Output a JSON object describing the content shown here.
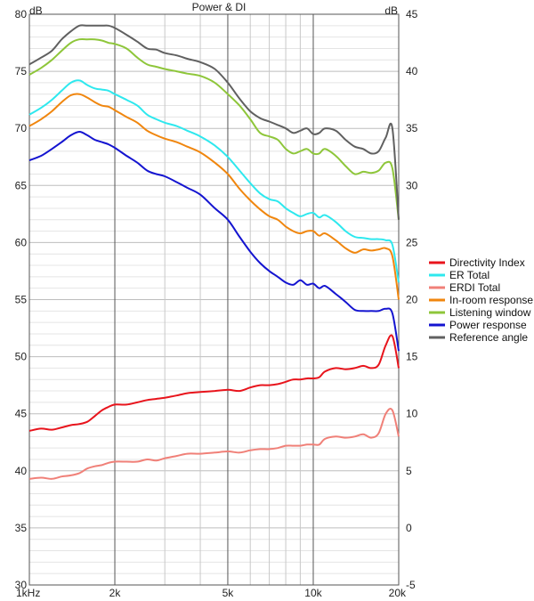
{
  "chart_data": {
    "type": "line",
    "title": "Power & DI",
    "left_axis_unit": "dB",
    "right_axis_unit": "dB",
    "x_scale": "log",
    "xlim": [
      1000,
      20000
    ],
    "ylim_left": [
      30,
      80
    ],
    "ylim_right": [
      -5,
      45
    ],
    "grid": true,
    "legend_position": "right",
    "x_ticks": [
      {
        "value": 1000,
        "label": "1kHz"
      },
      {
        "value": 2000,
        "label": "2k"
      },
      {
        "value": 5000,
        "label": "5k"
      },
      {
        "value": 10000,
        "label": "10k"
      },
      {
        "value": 20000,
        "label": "20k"
      }
    ],
    "y_ticks_left": [
      "30",
      "35",
      "40",
      "45",
      "50",
      "55",
      "60",
      "65",
      "70",
      "75",
      "80"
    ],
    "y_ticks_right": [
      "-5",
      "0",
      "5",
      "10",
      "15",
      "20",
      "25",
      "30",
      "35",
      "40",
      "45"
    ],
    "series": [
      {
        "name": "Directivity Index",
        "color": "#e8141c",
        "axis": "right",
        "x": [
          1000,
          1100,
          1200,
          1300,
          1400,
          1500,
          1600,
          1700,
          1800,
          1900,
          2000,
          2200,
          2400,
          2600,
          2800,
          3000,
          3300,
          3600,
          4000,
          4500,
          5000,
          5500,
          6000,
          6500,
          7000,
          7500,
          8000,
          8500,
          9000,
          9500,
          10000,
          10500,
          11000,
          12000,
          13000,
          14000,
          15000,
          16000,
          17000,
          18000,
          19000,
          20000
        ],
        "values": [
          8.5,
          8.7,
          8.6,
          8.8,
          9.0,
          9.1,
          9.3,
          9.8,
          10.3,
          10.6,
          10.8,
          10.8,
          11.0,
          11.2,
          11.3,
          11.4,
          11.6,
          11.8,
          11.9,
          12.0,
          12.1,
          12.0,
          12.3,
          12.5,
          12.5,
          12.6,
          12.8,
          13.0,
          13.0,
          13.1,
          13.1,
          13.2,
          13.7,
          14.0,
          13.9,
          14.0,
          14.2,
          14.0,
          14.3,
          16.0,
          16.8,
          14.0
        ]
      },
      {
        "name": "ER Total",
        "color": "#2ee8ee",
        "axis": "left",
        "x": [
          1000,
          1100,
          1200,
          1300,
          1400,
          1500,
          1600,
          1700,
          1800,
          1900,
          2000,
          2200,
          2400,
          2600,
          2800,
          3000,
          3300,
          3600,
          4000,
          4500,
          5000,
          5500,
          6000,
          6500,
          7000,
          7500,
          8000,
          8500,
          9000,
          9500,
          10000,
          10500,
          11000,
          12000,
          13000,
          14000,
          15000,
          16000,
          17000,
          18000,
          19000,
          20000
        ],
        "values": [
          71.2,
          71.8,
          72.5,
          73.3,
          74.0,
          74.2,
          73.8,
          73.5,
          73.4,
          73.3,
          73.0,
          72.5,
          72.0,
          71.2,
          70.8,
          70.5,
          70.2,
          69.8,
          69.3,
          68.5,
          67.5,
          66.3,
          65.2,
          64.3,
          63.8,
          63.6,
          63.0,
          62.6,
          62.3,
          62.5,
          62.6,
          62.2,
          62.4,
          61.8,
          61.0,
          60.5,
          60.4,
          60.3,
          60.3,
          60.2,
          59.8,
          56.5
        ]
      },
      {
        "name": "ERDI Total",
        "color": "#f08078",
        "axis": "right",
        "x": [
          1000,
          1100,
          1200,
          1300,
          1400,
          1500,
          1600,
          1700,
          1800,
          1900,
          2000,
          2200,
          2400,
          2600,
          2800,
          3000,
          3300,
          3600,
          4000,
          4500,
          5000,
          5500,
          6000,
          6500,
          7000,
          7500,
          8000,
          8500,
          9000,
          9500,
          10000,
          10500,
          11000,
          12000,
          13000,
          14000,
          15000,
          16000,
          17000,
          18000,
          19000,
          20000
        ],
        "values": [
          4.3,
          4.4,
          4.3,
          4.5,
          4.6,
          4.8,
          5.2,
          5.4,
          5.5,
          5.7,
          5.8,
          5.8,
          5.8,
          6.0,
          5.9,
          6.1,
          6.3,
          6.5,
          6.5,
          6.6,
          6.7,
          6.6,
          6.8,
          6.9,
          6.9,
          7.0,
          7.2,
          7.2,
          7.2,
          7.3,
          7.3,
          7.3,
          7.8,
          8.0,
          7.9,
          8.0,
          8.2,
          7.9,
          8.3,
          10.0,
          10.3,
          8.0
        ]
      },
      {
        "name": "In-room response",
        "color": "#f0860e",
        "axis": "left",
        "x": [
          1000,
          1100,
          1200,
          1300,
          1400,
          1500,
          1600,
          1700,
          1800,
          1900,
          2000,
          2200,
          2400,
          2600,
          2800,
          3000,
          3300,
          3600,
          4000,
          4500,
          5000,
          5500,
          6000,
          6500,
          7000,
          7500,
          8000,
          8500,
          9000,
          9500,
          10000,
          10500,
          11000,
          12000,
          13000,
          14000,
          15000,
          16000,
          17000,
          18000,
          19000,
          20000
        ],
        "values": [
          70.2,
          70.8,
          71.5,
          72.3,
          72.9,
          73.0,
          72.7,
          72.3,
          72.0,
          71.9,
          71.6,
          71.0,
          70.5,
          69.8,
          69.4,
          69.1,
          68.8,
          68.4,
          67.9,
          67.0,
          66.0,
          64.7,
          63.7,
          62.9,
          62.3,
          62.0,
          61.4,
          61.0,
          60.8,
          61.0,
          61.0,
          60.6,
          60.8,
          60.2,
          59.5,
          59.1,
          59.4,
          59.3,
          59.4,
          59.5,
          58.8,
          55.0
        ]
      },
      {
        "name": "Listening window",
        "color": "#8ec63a",
        "axis": "left",
        "x": [
          1000,
          1100,
          1200,
          1300,
          1400,
          1500,
          1600,
          1700,
          1800,
          1900,
          2000,
          2200,
          2400,
          2600,
          2800,
          3000,
          3300,
          3600,
          4000,
          4500,
          5000,
          5500,
          6000,
          6500,
          7000,
          7500,
          8000,
          8500,
          9000,
          9500,
          10000,
          10500,
          11000,
          12000,
          13000,
          14000,
          15000,
          16000,
          17000,
          18000,
          19000,
          20000
        ],
        "values": [
          74.7,
          75.3,
          76.0,
          76.8,
          77.5,
          77.8,
          77.8,
          77.8,
          77.7,
          77.5,
          77.4,
          77.0,
          76.2,
          75.6,
          75.4,
          75.2,
          75.0,
          74.8,
          74.6,
          74.0,
          73.0,
          72.0,
          70.8,
          69.6,
          69.3,
          69.0,
          68.2,
          67.8,
          68.0,
          68.2,
          67.8,
          67.8,
          68.2,
          67.6,
          66.7,
          66.0,
          66.2,
          66.1,
          66.3,
          67.0,
          66.5,
          62.0
        ]
      },
      {
        "name": "Power response",
        "color": "#1414d0",
        "axis": "left",
        "x": [
          1000,
          1100,
          1200,
          1300,
          1400,
          1500,
          1600,
          1700,
          1800,
          1900,
          2000,
          2200,
          2400,
          2600,
          2800,
          3000,
          3300,
          3600,
          4000,
          4500,
          5000,
          5500,
          6000,
          6500,
          7000,
          7500,
          8000,
          8500,
          9000,
          9500,
          10000,
          10500,
          11000,
          12000,
          13000,
          14000,
          15000,
          16000,
          17000,
          18000,
          19000,
          20000
        ],
        "values": [
          67.2,
          67.6,
          68.2,
          68.8,
          69.4,
          69.7,
          69.4,
          69.0,
          68.8,
          68.6,
          68.3,
          67.6,
          67.0,
          66.3,
          66.0,
          65.8,
          65.3,
          64.8,
          64.2,
          63.0,
          62.0,
          60.5,
          59.2,
          58.2,
          57.5,
          57.0,
          56.5,
          56.3,
          56.7,
          56.3,
          56.4,
          56.0,
          56.2,
          55.5,
          54.8,
          54.1,
          54.0,
          54.0,
          54.0,
          54.2,
          53.8,
          50.5
        ]
      },
      {
        "name": "Reference angle",
        "color": "#606060",
        "axis": "left",
        "x": [
          1000,
          1100,
          1200,
          1300,
          1400,
          1500,
          1600,
          1700,
          1800,
          1900,
          2000,
          2200,
          2400,
          2600,
          2800,
          3000,
          3300,
          3600,
          4000,
          4500,
          5000,
          5500,
          6000,
          6500,
          7000,
          7500,
          8000,
          8500,
          9000,
          9500,
          10000,
          10500,
          11000,
          12000,
          13000,
          14000,
          15000,
          16000,
          17000,
          18000,
          19000,
          20000
        ],
        "values": [
          75.6,
          76.2,
          76.8,
          77.8,
          78.5,
          79.0,
          79.0,
          79.0,
          79.0,
          79.0,
          78.8,
          78.2,
          77.6,
          77.0,
          76.9,
          76.6,
          76.4,
          76.1,
          75.8,
          75.2,
          74.0,
          72.6,
          71.5,
          70.9,
          70.6,
          70.3,
          70.0,
          69.6,
          69.8,
          70.0,
          69.5,
          69.6,
          70.0,
          69.8,
          69.0,
          68.4,
          68.2,
          67.8,
          68.0,
          69.2,
          70.0,
          62.0
        ]
      }
    ]
  }
}
